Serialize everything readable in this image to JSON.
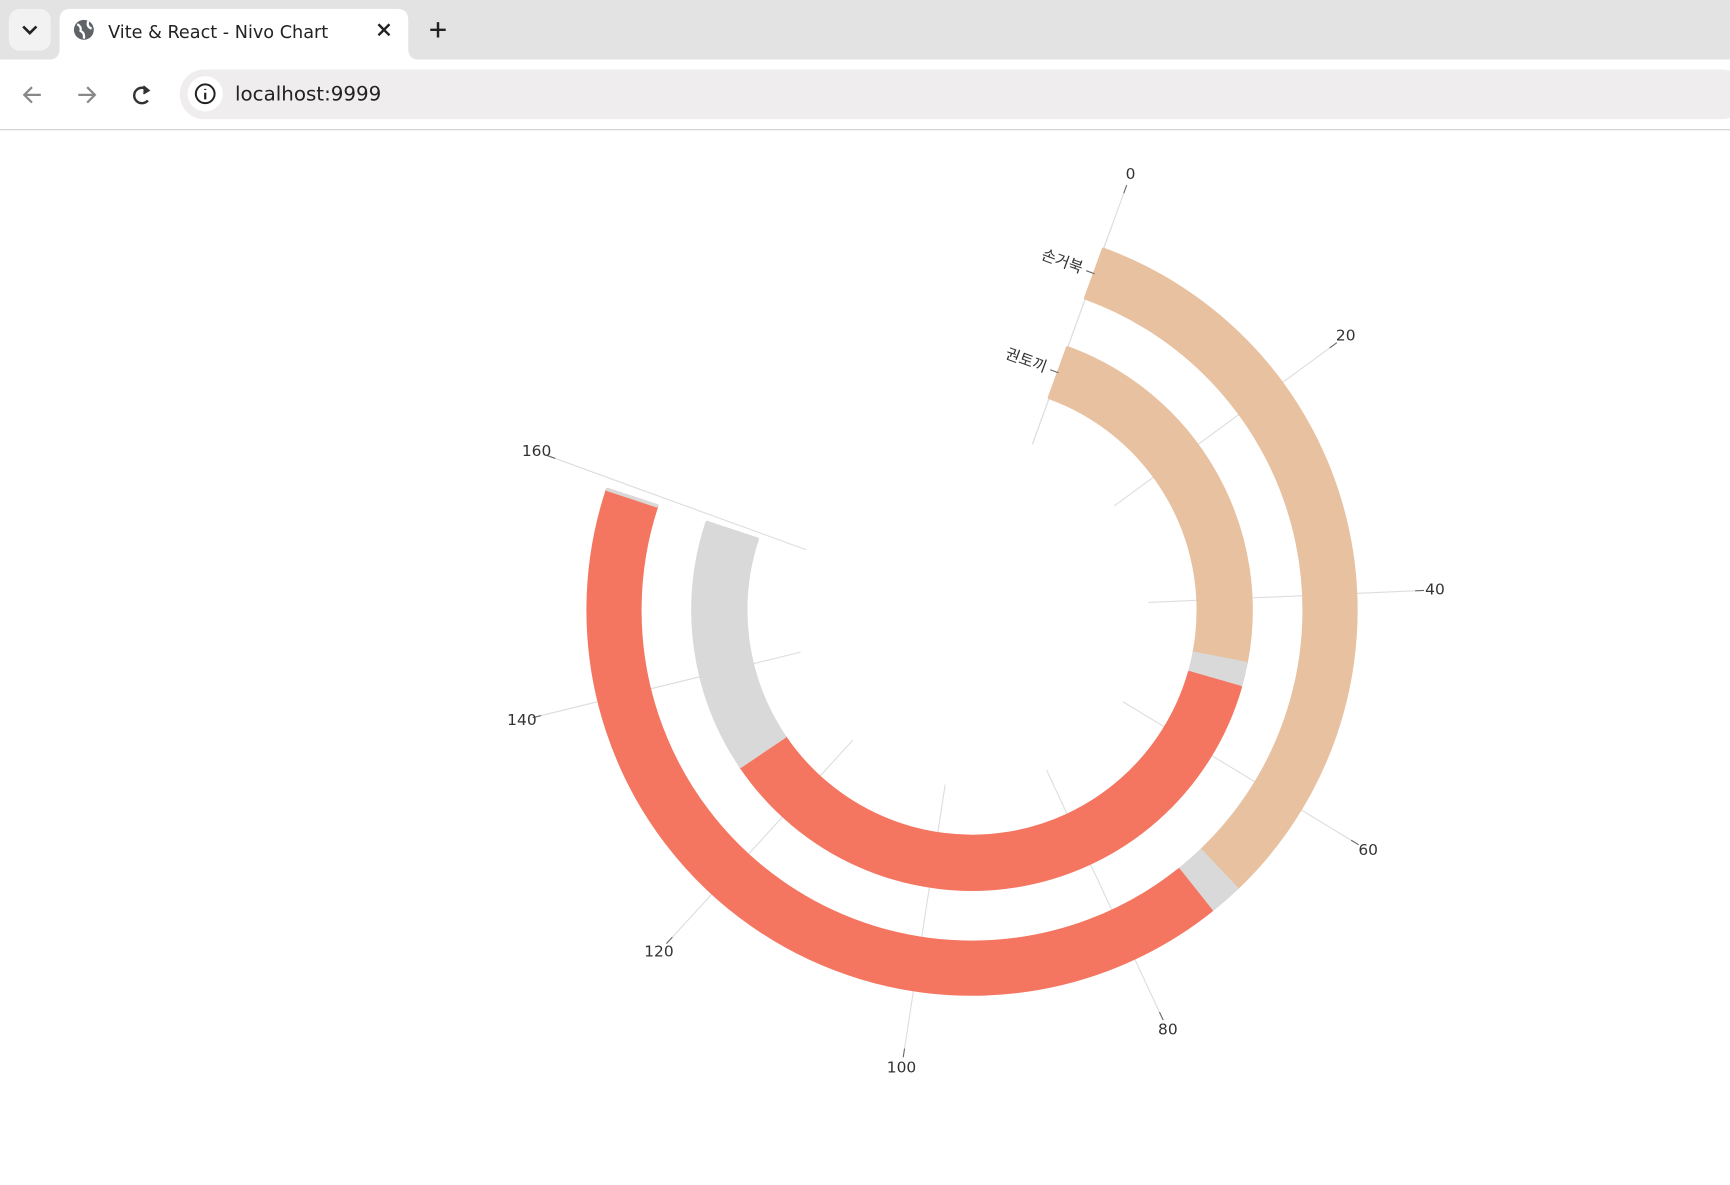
{
  "browser": {
    "tab_title": "Vite & React - Nivo Chart",
    "url": "localhost:9999"
  },
  "chart_data": {
    "type": "radialBar",
    "categories": [
      "손거북",
      "권토끼"
    ],
    "series": [
      {
        "color": "#e8c1a0",
        "values": [
          69,
          48
        ]
      },
      {
        "color": "#d9d9d9",
        "values": [
          3,
          3
        ]
      },
      {
        "color": "#f47560",
        "values": [
          87,
          77
        ]
      },
      {
        "color": "#d9d9d9",
        "values": [
          0,
          31
        ]
      }
    ],
    "ylim": [
      0,
      160
    ],
    "yticks": [
      0,
      20,
      40,
      60,
      80,
      100,
      120,
      140,
      160
    ],
    "grid": true
  }
}
